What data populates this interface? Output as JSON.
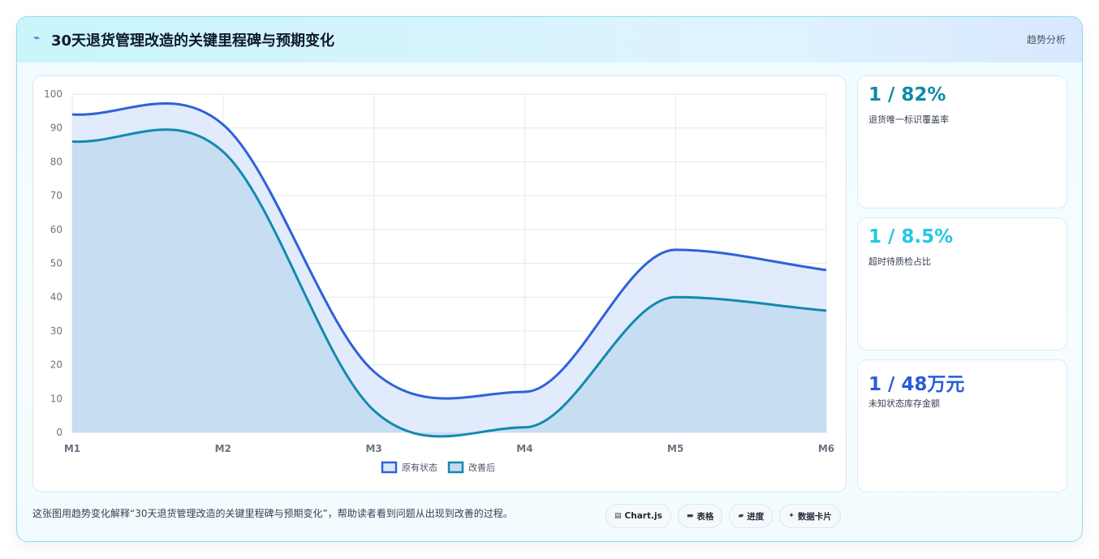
{
  "header": {
    "icon": "pulse-icon",
    "title": "30天退货管理改造的关键里程碑与预期变化",
    "tag": "趋势分析"
  },
  "kpis": [
    {
      "value": "1 / 82%",
      "label": "退货唯一标识覆盖率",
      "color": "#0e8aa8"
    },
    {
      "value": "1 / 8.5%",
      "label": "超时待质检占比",
      "color": "#22c7e6"
    },
    {
      "value": "1 / 48万元",
      "label": "未知状态库存金额",
      "color": "#2a5bd7"
    }
  ],
  "caption": "这张图用趋势变化解释“30天退货管理改造的关键里程碑与预期变化”，帮助读者看到问题从出现到改善的过程。",
  "chips": [
    {
      "icon": "chart-icon",
      "glyph": "▤",
      "label": "Chart.js"
    },
    {
      "icon": "table-icon",
      "glyph": "▬",
      "label": "表格"
    },
    {
      "icon": "progress-icon",
      "glyph": "▰",
      "label": "进度"
    },
    {
      "icon": "sparkle-icon",
      "glyph": "✦",
      "label": "数据卡片"
    }
  ],
  "chart_data": {
    "type": "area",
    "x": [
      "M1",
      "M2",
      "M3",
      "M4",
      "M5",
      "M6"
    ],
    "ylim": [
      0,
      100
    ],
    "yticks": [
      0,
      10,
      20,
      30,
      40,
      50,
      60,
      70,
      80,
      90,
      100
    ],
    "grid": true,
    "legend_position": "bottom",
    "series": [
      {
        "name": "原有状态",
        "values": [
          94,
          91,
          18,
          12,
          54,
          48
        ],
        "line_color": "#2e62d9",
        "fill_color": "#dce7fb"
      },
      {
        "name": "改善后",
        "values": [
          86,
          83,
          6.5,
          1.5,
          40,
          36
        ],
        "line_color": "#138aad",
        "fill_color": "#c4dcf1"
      }
    ]
  }
}
